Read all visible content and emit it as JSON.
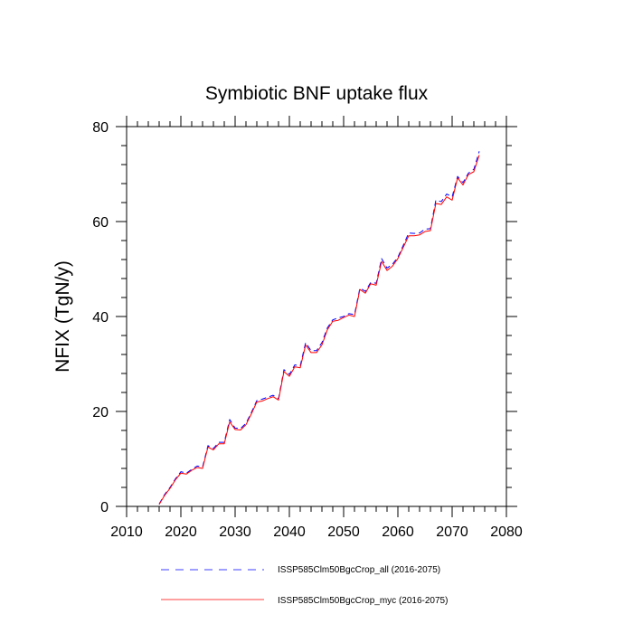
{
  "chart_data": {
    "type": "line",
    "title": "Symbiotic BNF uptake flux",
    "xlabel": "",
    "ylabel": "NFIX  (TgN/y)",
    "xlim": [
      2010,
      2080
    ],
    "ylim": [
      0,
      80
    ],
    "xticks": [
      2010,
      2020,
      2030,
      2040,
      2050,
      2060,
      2070,
      2080
    ],
    "yticks": [
      0,
      20,
      40,
      60,
      80
    ],
    "grid": false,
    "legend_position": "bottom",
    "x": [
      2016,
      2017,
      2018,
      2019,
      2020,
      2021,
      2022,
      2023,
      2024,
      2025,
      2026,
      2027,
      2028,
      2029,
      2030,
      2031,
      2032,
      2033,
      2034,
      2035,
      2036,
      2037,
      2038,
      2039,
      2040,
      2041,
      2042,
      2043,
      2044,
      2045,
      2046,
      2047,
      2048,
      2049,
      2050,
      2051,
      2052,
      2053,
      2054,
      2055,
      2056,
      2057,
      2058,
      2059,
      2060,
      2061,
      2062,
      2063,
      2064,
      2065,
      2066,
      2067,
      2068,
      2069,
      2070,
      2071,
      2072,
      2073,
      2074,
      2075
    ],
    "series": [
      {
        "name": "ISSP585Clm50BgcCrop_all (2016-2075)",
        "color": "#0000ff",
        "dash": "dashed",
        "values": [
          0.5,
          2.5,
          4.0,
          5.8,
          7.3,
          7.0,
          7.8,
          8.5,
          8.3,
          12.8,
          12.2,
          13.5,
          13.5,
          18.3,
          16.5,
          16.4,
          17.5,
          19.8,
          22.3,
          22.6,
          23.0,
          23.4,
          22.7,
          28.8,
          27.8,
          29.8,
          29.6,
          34.5,
          32.8,
          32.8,
          34.5,
          37.6,
          39.3,
          39.7,
          40.0,
          40.6,
          40.4,
          46.0,
          45.3,
          47.2,
          47.0,
          52.2,
          50.2,
          51.0,
          52.5,
          55.0,
          57.6,
          57.5,
          57.6,
          58.4,
          58.5,
          64.5,
          64.2,
          65.8,
          65.2,
          69.5,
          68.2,
          70.2,
          71.0,
          74.8
        ]
      },
      {
        "name": "ISSP585Clm50BgcCrop_myc (2016-2075)",
        "color": "#ff0000",
        "dash": "solid",
        "values": [
          0.4,
          2.3,
          3.8,
          5.6,
          7.0,
          6.8,
          7.6,
          8.2,
          8.0,
          12.5,
          11.9,
          13.2,
          13.2,
          17.8,
          16.2,
          16.1,
          17.2,
          19.5,
          22.0,
          22.2,
          22.7,
          23.1,
          22.4,
          28.4,
          27.4,
          29.4,
          29.2,
          34.0,
          32.4,
          32.4,
          34.0,
          37.2,
          39.0,
          39.2,
          39.8,
          40.3,
          40.0,
          45.7,
          44.9,
          46.9,
          46.6,
          51.6,
          49.7,
          50.6,
          52.2,
          54.6,
          57.0,
          57.0,
          57.2,
          57.9,
          58.1,
          63.8,
          63.6,
          65.2,
          64.5,
          69.2,
          67.7,
          69.9,
          70.5,
          74.0
        ]
      }
    ]
  }
}
